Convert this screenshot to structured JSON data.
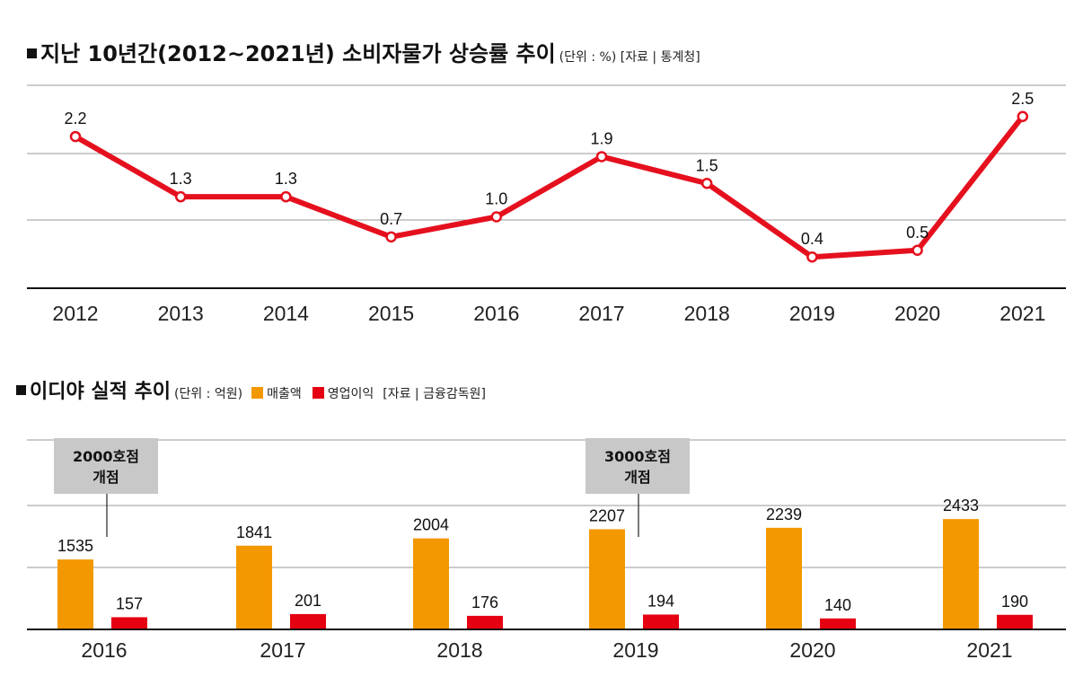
{
  "titles": {
    "line_title": "지난 10년간(2012~2021년) 소비자물가 상승률 추이",
    "line_sub": "(단위 : %)  [자료 | 통계청]",
    "bar_title": "이디야 실적 추이",
    "bar_unit": "(단위 : 억원)",
    "bar_source": "[자료 | 금융감독원]"
  },
  "colors": {
    "line": "#e5101e",
    "revenue": "#f39800",
    "profit": "#e50012",
    "grid": "#9a9a9a"
  },
  "chart_data": [
    {
      "type": "line",
      "title": "지난 10년간(2012~2021년) 소비자물가 상승률 추이",
      "unit": "%",
      "source": "통계청",
      "categories": [
        "2012",
        "2013",
        "2014",
        "2015",
        "2016",
        "2017",
        "2018",
        "2019",
        "2020",
        "2021"
      ],
      "values": [
        2.2,
        1.3,
        1.3,
        0.7,
        1.0,
        1.9,
        1.5,
        0.4,
        0.5,
        2.5
      ],
      "value_labels": [
        "2.2",
        "1.3",
        "1.3",
        "0.7",
        "1.0",
        "1.9",
        "1.5",
        "0.4",
        "0.5",
        "2.5"
      ],
      "ylim": [
        0,
        3
      ]
    },
    {
      "type": "bar",
      "title": "이디야 실적 추이",
      "unit": "억원",
      "source": "금융감독원",
      "categories": [
        "2016",
        "2017",
        "2018",
        "2019",
        "2020",
        "2021"
      ],
      "series": [
        {
          "name": "매출액",
          "values": [
            1535,
            1841,
            2004,
            2207,
            2239,
            2433
          ]
        },
        {
          "name": "영업이익",
          "values": [
            157,
            201,
            176,
            194,
            140,
            190
          ]
        }
      ],
      "annotations": [
        {
          "category": "2016",
          "line1": "2000호점",
          "line2": "개점"
        },
        {
          "category": "2019",
          "line1": "3000호점",
          "line2": "개점"
        }
      ]
    }
  ]
}
